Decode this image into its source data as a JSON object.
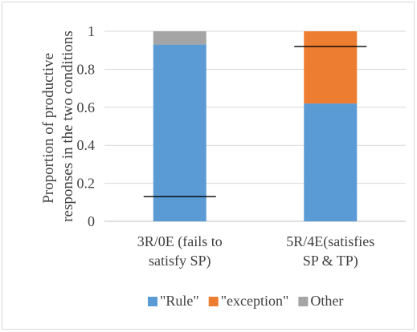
{
  "chart_data": {
    "type": "bar",
    "stacked": true,
    "ylabel_lines": [
      "Proportion of productive",
      "responses in the two conditions"
    ],
    "categories": [
      [
        "3R/0E (fails to",
        "satisfy SP)"
      ],
      [
        "5R/4E(satisfies",
        "SP & TP)"
      ]
    ],
    "series": [
      {
        "name": "\"Rule\"",
        "color": "#5B9BD5",
        "values": [
          0.93,
          0.62
        ]
      },
      {
        "name": "\"exception\"",
        "color": "#ED7D31",
        "values": [
          0.0,
          0.38
        ]
      },
      {
        "name": "Other",
        "color": "#A5A5A5",
        "values": [
          0.07,
          0.0
        ]
      }
    ],
    "reference_lines": [
      0.13,
      0.92
    ],
    "ylim": [
      0,
      1
    ],
    "yticks": [
      "0",
      "0.2",
      "0.4",
      "0.6",
      "0.8",
      "1"
    ],
    "grid": true,
    "legend_position": "bottom"
  }
}
